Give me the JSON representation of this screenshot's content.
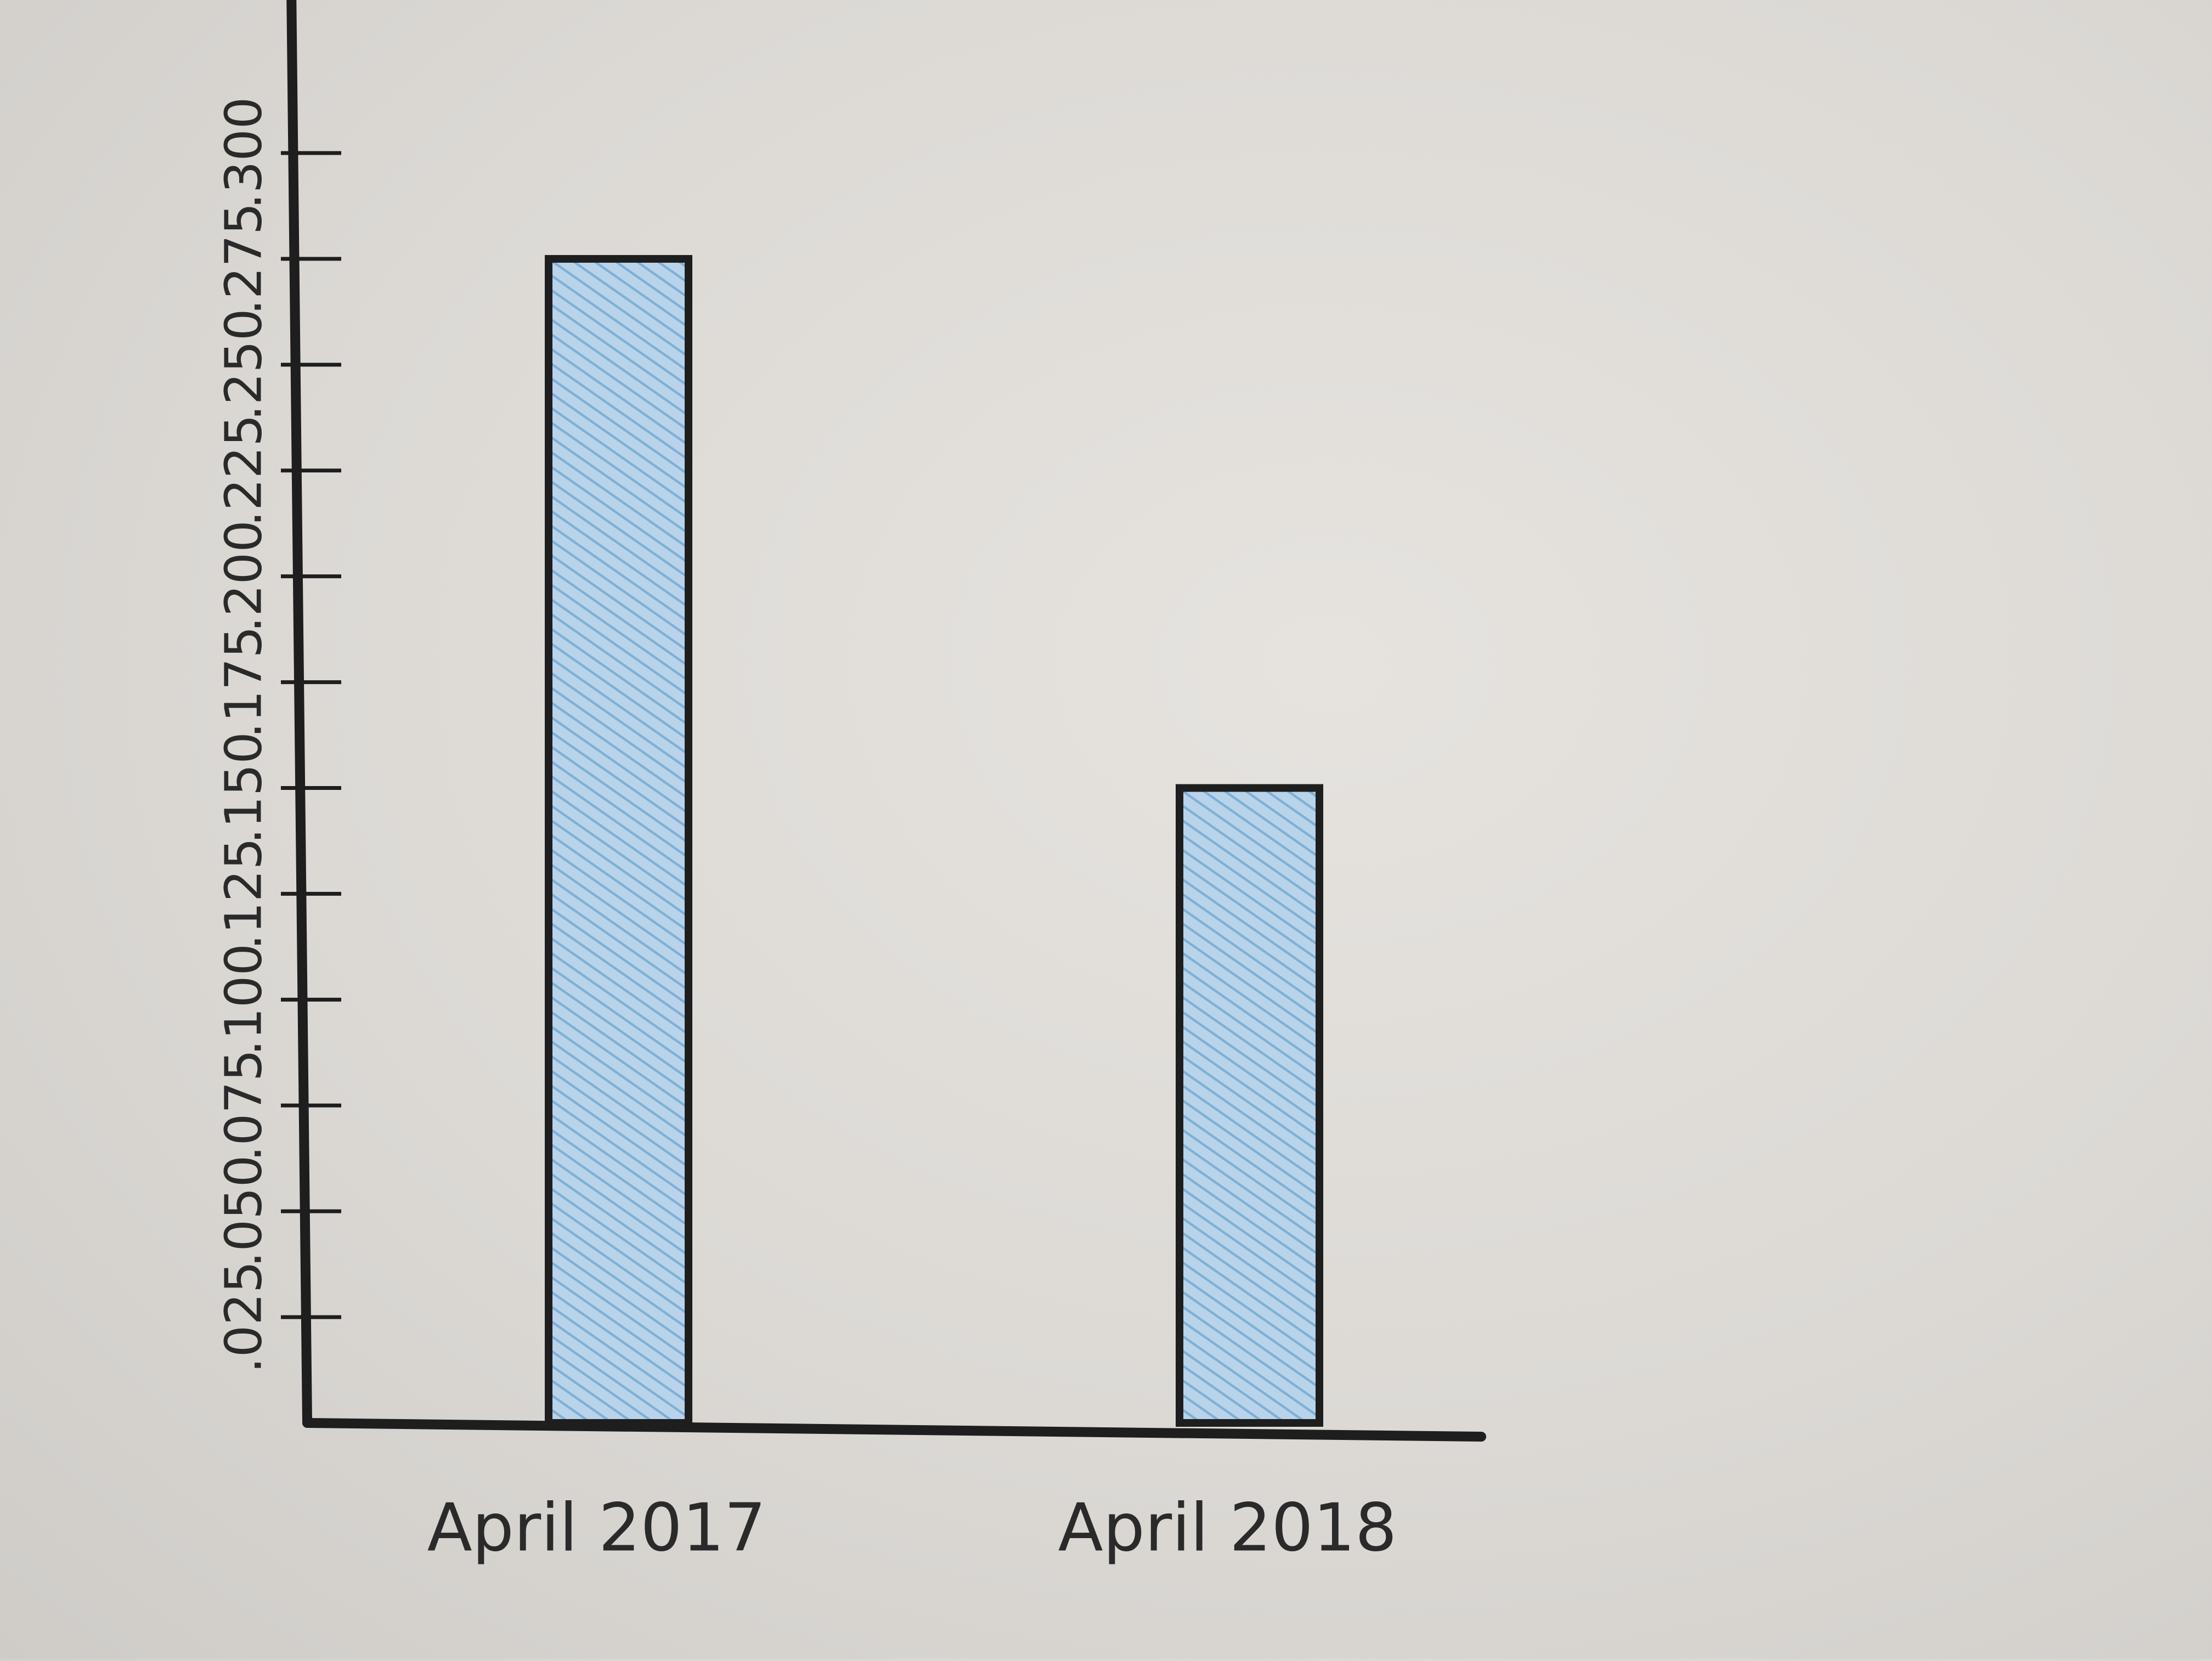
{
  "chart_data": {
    "type": "bar",
    "orientation": "horizontal",
    "categories": [
      "April 2017",
      "April 2018"
    ],
    "values": [
      0.275,
      0.15
    ],
    "tick_labels": [
      ".025",
      ".050",
      ".075",
      ".100",
      ".125",
      ".150",
      ".175",
      ".200",
      ".225",
      ".250",
      ".275",
      ".300"
    ],
    "tick_values": [
      0.025,
      0.05,
      0.075,
      0.1,
      0.125,
      0.15,
      0.175,
      0.2,
      0.225,
      0.25,
      0.275,
      0.3
    ],
    "xlim": [
      0,
      0.34
    ],
    "grid": false,
    "bar_color": "#9ec3e0",
    "outline_color": "#1e1e1e",
    "rotation": "page rotated 90 degrees clockwise"
  }
}
